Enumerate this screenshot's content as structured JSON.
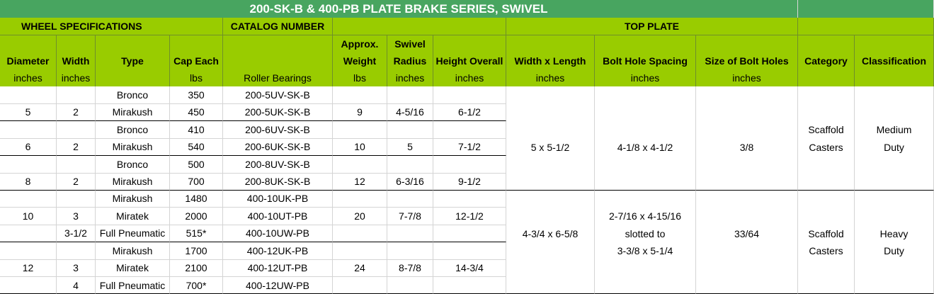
{
  "title": "200-SK-B & 400-PB PLATE BRAKE SERIES, SWIVEL",
  "group_headers": [
    "WHEEL SPECIFICATIONS",
    "CATALOG NUMBER",
    "TOP PLATE"
  ],
  "columns": [
    {
      "label": "Diameter",
      "unit": "inches"
    },
    {
      "label": "Width",
      "unit": "inches"
    },
    {
      "label": "Type",
      "unit": null
    },
    {
      "label": "Cap Each",
      "unit": "lbs"
    },
    {
      "label": null,
      "unit": "Roller Bearings"
    },
    {
      "label": "Approx. Weight",
      "unit": "lbs"
    },
    {
      "label": "Swivel Radius",
      "unit": "inches"
    },
    {
      "label": "Height Overall",
      "unit": "inches"
    },
    {
      "label": "Width x Length",
      "unit": "inches"
    },
    {
      "label": "Bolt Hole Spacing",
      "unit": "inches"
    },
    {
      "label": "Size of Bolt Holes",
      "unit": "inches"
    },
    {
      "label": "Category",
      "unit": null
    },
    {
      "label": "Classification",
      "unit": null
    }
  ],
  "rows": [
    [
      null,
      null,
      "Bronco",
      "350",
      "200-5UV-SK-B",
      null,
      null,
      null,
      null,
      null,
      null,
      null,
      null
    ],
    [
      "5",
      "2",
      "Mirakush",
      "450",
      "200-5UK-SK-B",
      "9",
      "4-5/16",
      "6-1/2",
      null,
      null,
      null,
      null,
      null
    ],
    [
      null,
      null,
      "Bronco",
      "410",
      "200-6UV-SK-B",
      null,
      null,
      null,
      null,
      null,
      null,
      "Scaffold",
      "Medium"
    ],
    [
      "6",
      "2",
      "Mirakush",
      "540",
      "200-6UK-SK-B",
      "10",
      "5",
      "7-1/2",
      "5 x 5-1/2",
      "4-1/8 x 4-1/2",
      "3/8",
      "Casters",
      "Duty"
    ],
    [
      null,
      null,
      "Bronco",
      "500",
      "200-8UV-SK-B",
      null,
      null,
      null,
      null,
      null,
      null,
      null,
      null
    ],
    [
      "8",
      "2",
      "Mirakush",
      "700",
      "200-8UK-SK-B",
      "12",
      "6-3/16",
      "9-1/2",
      null,
      null,
      null,
      null,
      null
    ],
    [
      null,
      null,
      "Mirakush",
      "1480",
      "400-10UK-PB",
      null,
      null,
      null,
      null,
      null,
      null,
      null,
      null
    ],
    [
      "10",
      "3",
      "Miratek",
      "2000",
      "400-10UT-PB",
      "20",
      "7-7/8",
      "12-1/2",
      null,
      "2-7/16 x 4-15/16",
      null,
      null,
      null
    ],
    [
      null,
      "3-1/2",
      "Full Pneumatic",
      "515*",
      "400-10UW-PB",
      null,
      null,
      null,
      "4-3/4 x 6-5/8",
      "slotted to",
      "33/64",
      "Scaffold",
      "Heavy"
    ],
    [
      null,
      null,
      "Mirakush",
      "1700",
      "400-12UK-PB",
      null,
      null,
      null,
      null,
      "3-3/8 x 5-1/4",
      null,
      "Casters",
      "Duty"
    ],
    [
      "12",
      "3",
      "Miratek",
      "2100",
      "400-12UT-PB",
      "24",
      "8-7/8",
      "14-3/4",
      null,
      null,
      null,
      null,
      null
    ],
    [
      null,
      "4",
      "Full Pneumatic",
      "700*",
      "400-12UW-PB",
      null,
      null,
      null,
      null,
      null,
      null,
      null,
      null
    ]
  ]
}
